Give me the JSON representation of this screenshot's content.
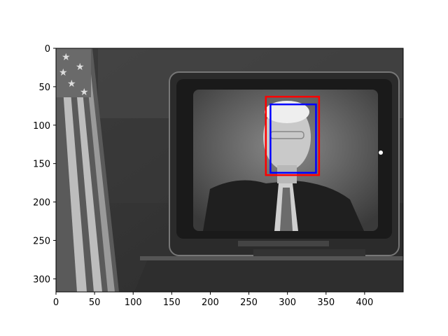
{
  "chart_data": {
    "type": "image_with_bounding_boxes",
    "image_description_hidden": true,
    "xlim": [
      0,
      450
    ],
    "ylim": [
      0,
      317
    ],
    "y_inverted": true,
    "xticks": [
      0,
      50,
      100,
      150,
      200,
      250,
      300,
      350,
      400
    ],
    "yticks": [
      0,
      50,
      100,
      150,
      200,
      250,
      300
    ],
    "boxes": [
      {
        "name": "red-box",
        "color": "#ff0000",
        "x0": 272,
        "y0": 63,
        "x1": 341,
        "y1": 165
      },
      {
        "name": "blue-box",
        "color": "#0000ff",
        "x0": 278,
        "y0": 73,
        "x1": 337,
        "y1": 162
      }
    ]
  }
}
